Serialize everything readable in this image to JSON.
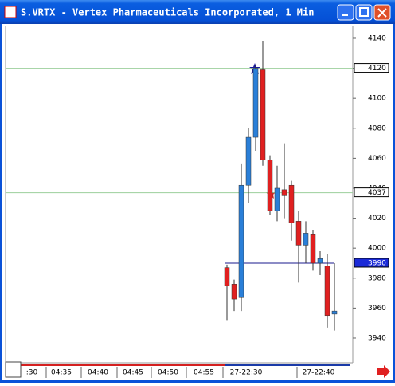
{
  "chart_data": {
    "type": "candlestick",
    "title": "S.VRTX - Vertex Pharmaceuticals Incorporated, 1 Min",
    "open": [
      3987,
      3976,
      3967,
      4042,
      4074,
      4119,
      4059,
      4025,
      4039,
      4042,
      4018,
      4002,
      4009,
      3990,
      3988,
      3956
    ],
    "high": [
      3989,
      3979,
      4056,
      4080,
      4122,
      4138,
      4062,
      4055,
      4070,
      4045,
      4025,
      4018,
      4012,
      3998,
      3996,
      3990
    ],
    "low": [
      3952,
      3958,
      3958,
      4030,
      4065,
      4055,
      4022,
      4018,
      4020,
      4005,
      3977,
      3990,
      3985,
      3982,
      3947,
      3945
    ],
    "close": [
      3975,
      3966,
      4042,
      4074,
      4120,
      4059,
      4025,
      4040,
      4035,
      4017,
      4002,
      4010,
      3990,
      3993,
      3955,
      3958
    ],
    "up_color": "#2a7fd8",
    "down_color": "#e02020",
    "ylim": [
      3923.5,
      4148.5
    ],
    "yticks": [
      3940,
      3960,
      3980,
      4000,
      4020,
      4040,
      4060,
      4080,
      4100,
      4120,
      4140
    ],
    "reference_lines": [
      {
        "value": 4120,
        "color": "#9ccf9c"
      },
      {
        "value": 4037,
        "color": "#9ccf9c"
      },
      {
        "value": 3990,
        "color": "#1a1a8c"
      }
    ],
    "xlabels": [
      ":30",
      "04:35",
      "04:40",
      "04:45",
      "04:50",
      "04:55",
      "27-22:30",
      "27-22:40"
    ]
  }
}
